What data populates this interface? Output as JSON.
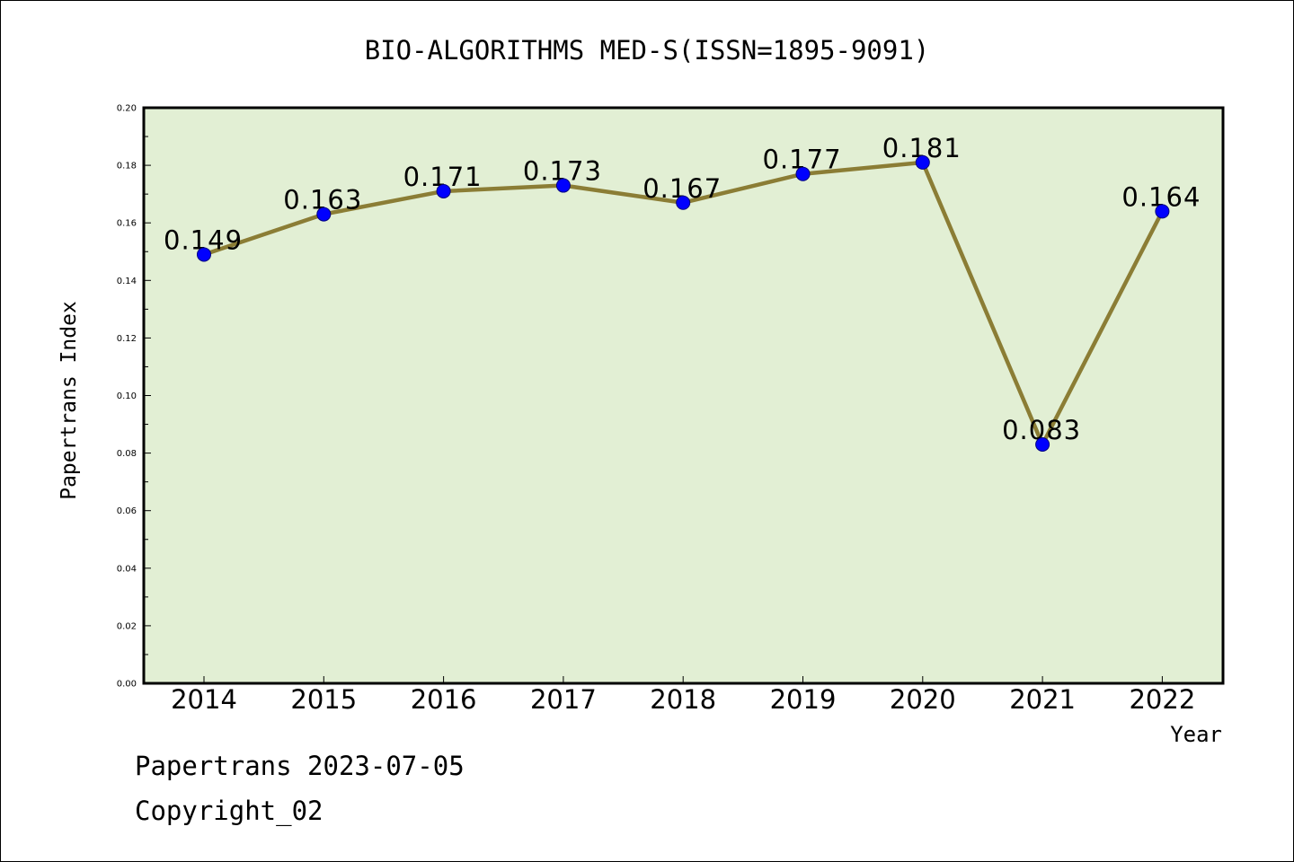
{
  "chart_data": {
    "type": "line",
    "title": "BIO-ALGORITHMS MED-S(ISSN=1895-9091)",
    "xlabel": "Year",
    "ylabel": "Papertrans Index",
    "categories": [
      "2014",
      "2015",
      "2016",
      "2017",
      "2018",
      "2019",
      "2020",
      "2021",
      "2022"
    ],
    "series": [
      {
        "values": [
          0.149,
          0.163,
          0.171,
          0.173,
          0.167,
          0.177,
          0.181,
          0.083,
          0.164
        ],
        "labels": [
          "0.149",
          "0.163",
          "0.171",
          "0.173",
          "0.167",
          "0.177",
          "0.181",
          "0.083",
          "0.164"
        ]
      }
    ],
    "ylim": [
      0,
      0.2
    ],
    "yticks": [
      "0.00",
      "0.02",
      "0.04",
      "0.06",
      "0.08",
      "0.10",
      "0.12",
      "0.14",
      "0.16",
      "0.18",
      "0.20"
    ],
    "grid": false,
    "legend": "none",
    "colors": {
      "plot_background": "#e2efd4",
      "line": "#8b7d35",
      "marker": "#0000ff",
      "marker_edge": "#00007f"
    }
  },
  "footer": {
    "line1": "Papertrans 2023-07-05",
    "line2": "Copyright_02"
  }
}
